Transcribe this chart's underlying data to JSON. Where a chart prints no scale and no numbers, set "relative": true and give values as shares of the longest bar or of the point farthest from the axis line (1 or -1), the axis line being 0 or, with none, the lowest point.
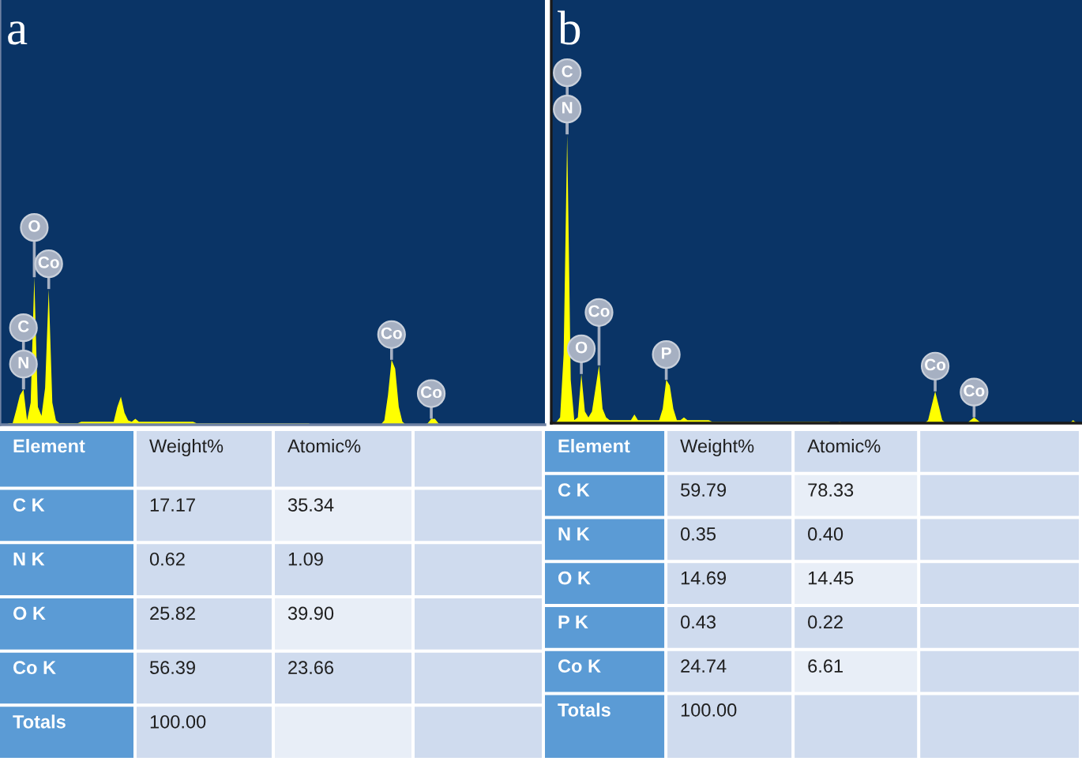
{
  "chart_data": [
    {
      "type": "area",
      "title": "a",
      "relative": true,
      "color": "#ffff00",
      "categories": [
        null,
        null,
        null,
        null,
        null,
        null,
        null,
        null,
        null,
        null,
        null,
        null,
        null,
        null,
        null,
        null,
        null,
        null,
        null,
        null,
        null,
        null,
        null,
        null,
        null,
        null,
        null,
        null,
        null,
        null,
        null,
        null,
        null,
        null,
        null,
        null,
        null,
        null,
        null,
        null,
        null,
        null,
        null,
        null,
        null,
        null,
        null,
        null,
        null,
        null,
        null,
        null,
        null,
        null,
        null,
        null,
        null,
        null,
        null,
        null,
        null,
        null,
        null,
        null,
        null,
        null,
        null,
        null,
        null,
        null,
        null,
        null,
        null,
        null,
        null,
        null,
        null,
        null,
        null,
        null,
        null,
        null,
        null,
        null,
        null,
        null,
        null,
        null,
        null,
        null,
        null,
        null,
        null,
        null,
        null,
        null,
        null,
        null,
        null,
        null,
        null,
        null,
        null,
        null,
        null,
        null,
        null,
        null,
        null,
        null,
        null,
        null,
        null,
        null,
        null,
        null,
        null,
        null,
        null,
        null,
        null,
        null,
        null,
        null,
        null,
        null,
        null,
        null,
        null,
        null,
        null,
        null,
        null,
        null,
        null,
        null,
        null,
        null,
        null,
        null,
        null,
        null,
        null,
        null,
        null,
        null,
        null,
        null,
        null,
        null
      ],
      "values": [
        0,
        0.01,
        0.01,
        0.1,
        0.2,
        0.24,
        0.03,
        0.15,
        1,
        0.12,
        0.06,
        0.25,
        0.92,
        0.15,
        0.03,
        0.01,
        0.01,
        0.01,
        0.01,
        0.01,
        0.01,
        0.02,
        0.02,
        0.02,
        0.02,
        0.02,
        0.02,
        0.02,
        0.02,
        0.02,
        0.02,
        0.12,
        0.19,
        0.08,
        0.03,
        0.02,
        0.04,
        0.02,
        0.02,
        0.02,
        0.02,
        0.02,
        0.02,
        0.02,
        0.02,
        0.02,
        0.02,
        0.02,
        0.02,
        0.02,
        0.02,
        0.02,
        0.02,
        0.01,
        0.01,
        0.01,
        0.01,
        0.01,
        0.01,
        0.01,
        0.01,
        0.01,
        0.01,
        0.01,
        0.01,
        0.01,
        0.01,
        0.01,
        0.01,
        0.01,
        0.01,
        0.01,
        0.01,
        0.01,
        0.01,
        0.01,
        0.01,
        0.01,
        0.01,
        0.01,
        0.01,
        0.01,
        0.01,
        0.01,
        0.01,
        0,
        0,
        0,
        0,
        0,
        0,
        0,
        0,
        0,
        0,
        0,
        0,
        0,
        0,
        0,
        0,
        0,
        0,
        0,
        0,
        0.03,
        0.2,
        0.44,
        0.38,
        0.12,
        0.02,
        0,
        0,
        0,
        0,
        0,
        0,
        0.01,
        0.04,
        0.04,
        0.01,
        0,
        0,
        0,
        0,
        0,
        0,
        0,
        0,
        0,
        0,
        0,
        0,
        0,
        0,
        0,
        0,
        0,
        0,
        0,
        0,
        0,
        0,
        0,
        0,
        0,
        0,
        0,
        0,
        0
      ],
      "annotations": [
        {
          "text": "C",
          "y": 0.24
        },
        {
          "text": "N",
          "y": 0.24
        },
        {
          "text": "O",
          "y": 1
        },
        {
          "text": "Co",
          "y": 0.92
        },
        {
          "text": "Co",
          "y": 0.44
        },
        {
          "text": "Co",
          "y": 0.04
        }
      ]
    },
    {
      "type": "area",
      "title": "b",
      "relative": true,
      "color": "#ffff00",
      "categories": [
        null,
        null,
        null,
        null,
        null,
        null,
        null,
        null,
        null,
        null,
        null,
        null,
        null,
        null,
        null,
        null,
        null,
        null,
        null,
        null,
        null,
        null,
        null,
        null,
        null,
        null,
        null,
        null,
        null,
        null,
        null,
        null,
        null,
        null,
        null,
        null,
        null,
        null,
        null,
        null,
        null,
        null,
        null,
        null,
        null,
        null,
        null,
        null,
        null,
        null,
        null,
        null,
        null,
        null,
        null,
        null,
        null,
        null,
        null,
        null,
        null,
        null,
        null,
        null,
        null,
        null,
        null,
        null,
        null,
        null,
        null,
        null,
        null,
        null,
        null,
        null,
        null,
        null,
        null,
        null,
        null,
        null,
        null,
        null,
        null,
        null,
        null,
        null,
        null,
        null,
        null,
        null,
        null,
        null,
        null,
        null,
        null,
        null,
        null,
        null,
        null,
        null,
        null,
        null,
        null,
        null,
        null,
        null,
        null,
        null,
        null,
        null,
        null,
        null,
        null,
        null,
        null,
        null,
        null,
        null,
        null,
        null,
        null,
        null,
        null,
        null,
        null,
        null,
        null,
        null,
        null,
        null,
        null,
        null,
        null,
        null,
        null,
        null,
        null,
        null,
        null,
        null,
        null,
        null,
        null,
        null,
        null,
        null,
        null,
        null
      ],
      "values": [
        0,
        0.005,
        0.02,
        0.24,
        1,
        0.15,
        0.01,
        0.02,
        0.17,
        0.04,
        0.02,
        0.04,
        0.12,
        0.2,
        0.05,
        0.02,
        0.01,
        0.01,
        0.01,
        0.01,
        0.01,
        0.01,
        0.01,
        0.03,
        0.01,
        0.01,
        0.01,
        0.01,
        0.01,
        0.01,
        0.01,
        0.05,
        0.15,
        0.13,
        0.05,
        0.01,
        0.01,
        0.02,
        0.01,
        0.01,
        0.01,
        0.01,
        0.01,
        0.01,
        0.01,
        0.005,
        0.005,
        0.005,
        0.005,
        0.005,
        0.005,
        0.005,
        0.005,
        0.005,
        0.005,
        0.005,
        0.005,
        0.005,
        0.005,
        0.005,
        0.005,
        0.005,
        0.005,
        0.005,
        0.005,
        0.005,
        0.005,
        0.005,
        0.005,
        0.005,
        0.005,
        0.005,
        0.005,
        0.005,
        0.005,
        0.005,
        0.005,
        0.005,
        0.005,
        0,
        0,
        0.005,
        0,
        0,
        0,
        0,
        0,
        0,
        0,
        0,
        0,
        0,
        0,
        0,
        0,
        0,
        0,
        0,
        0,
        0,
        0,
        0,
        0,
        0,
        0,
        0,
        0.01,
        0.06,
        0.11,
        0.06,
        0.01,
        0,
        0,
        0,
        0,
        0,
        0,
        0,
        0.01,
        0.02,
        0.01,
        0,
        0,
        0,
        0,
        0,
        0,
        0,
        0,
        0,
        0,
        0,
        0,
        0,
        0,
        0,
        0,
        0,
        0,
        0,
        0,
        0,
        0,
        0,
        0,
        0,
        0,
        0.01,
        0,
        0
      ],
      "annotations": [
        {
          "text": "C",
          "y": 1
        },
        {
          "text": "N",
          "y": 1
        },
        {
          "text": "O",
          "y": 0.17
        },
        {
          "text": "Co",
          "y": 0.2
        },
        {
          "text": "P",
          "y": 0.15
        },
        {
          "text": "Co",
          "y": 0.11
        },
        {
          "text": "Co",
          "y": 0.02
        }
      ]
    },
    {
      "type": "other",
      "ylabel": "Element",
      "categories": [
        "C K",
        "N K",
        "O K",
        "Co K",
        "Totals"
      ],
      "series": [
        {
          "name": "Weight%",
          "color": "#cfdbee",
          "values": [
            17.17,
            0.62,
            25.82,
            56.39,
            100.0
          ],
          "value_labels": [
            "17.17",
            "0.62",
            "25.82",
            "56.39",
            "100.00"
          ]
        },
        {
          "name": "Atomic%",
          "colors": [
            "#e8eef7",
            "#cfdbee",
            "#e8eef7",
            "#cfdbee",
            "#e8eef7"
          ],
          "values": [
            35.34,
            1.09,
            39.9,
            23.66,
            null
          ],
          "value_labels": [
            "35.34",
            "1.09",
            "39.90",
            "23.66",
            null
          ]
        }
      ]
    },
    {
      "type": "other",
      "ylabel": "Element",
      "categories": [
        "C K",
        "N K",
        "O K",
        "P K",
        "Co K",
        "Totals"
      ],
      "series": [
        {
          "name": "Weight%",
          "color": "#cfdbee",
          "values": [
            59.79,
            0.35,
            14.69,
            0.43,
            24.74,
            100.0
          ],
          "value_labels": [
            "59.79",
            "0.35",
            "14.69",
            "0.43",
            "24.74",
            "100.00"
          ]
        },
        {
          "name": "Atomic%",
          "colors": [
            "#e8eef7",
            "#cfdbee",
            "#e8eef7",
            "#cfdbee",
            "#e8eef7",
            "#cfdbee"
          ],
          "values": [
            78.33,
            0.4,
            14.45,
            0.22,
            6.61,
            null
          ],
          "value_labels": [
            "78.33",
            "0.40",
            "14.45",
            "0.22",
            "6.61",
            null
          ]
        }
      ]
    }
  ]
}
